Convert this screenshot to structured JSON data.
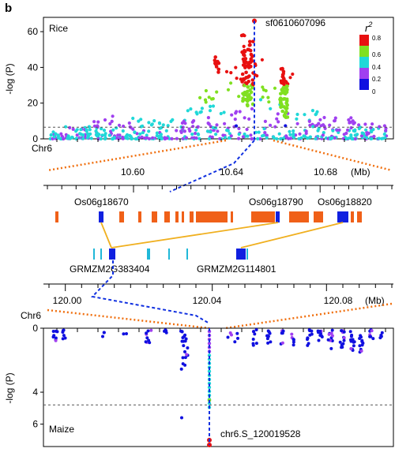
{
  "panel_label": "b",
  "colors": {
    "r2_bins": [
      "#1010e0",
      "#a040f0",
      "#20d8d8",
      "#80e020",
      "#e81010"
    ],
    "orange": "#f07010",
    "gene_rice": "#f06018",
    "gene_highlight": "#1020e0",
    "gene_maize": "#20b8d8",
    "link": "#f0b020",
    "threshold": "#555555",
    "lead_line": "#1030e0"
  },
  "legend": {
    "title": "r",
    "title_sup": "2",
    "labels": [
      "0.8",
      "0.6",
      "0.4",
      "0.2",
      "0"
    ]
  },
  "chart_data": [
    {
      "type": "scatter",
      "name": "rice-manhattan",
      "species_label": "Rice",
      "chrom_label": "Chr6",
      "ylabel": "-log (P)",
      "ylim": [
        0,
        68
      ],
      "yticks": [
        "0",
        "20",
        "40",
        "60"
      ],
      "threshold": 6.5,
      "lead_snp": {
        "label": "sf0610607096",
        "y": 66
      },
      "regions": [
        {
          "x0": 0.0,
          "x1": 0.04,
          "ymax": 4,
          "level": 1
        },
        {
          "x0": 0.04,
          "x1": 0.12,
          "ymax": 7,
          "level": 0
        },
        {
          "x0": 0.12,
          "x1": 0.24,
          "ymax": 13,
          "level": 1
        },
        {
          "x0": 0.24,
          "x1": 0.36,
          "ymax": 12,
          "level": 2
        },
        {
          "x0": 0.36,
          "x1": 0.44,
          "ymax": 18,
          "level": 2
        },
        {
          "x0": 0.44,
          "x1": 0.52,
          "ymax": 28,
          "level": 3
        },
        {
          "x0": 0.52,
          "x1": 0.57,
          "ymax": 40,
          "level": 3
        },
        {
          "x0": 0.57,
          "x1": 0.63,
          "ymax": 60,
          "level": 4
        },
        {
          "x0": 0.63,
          "x1": 0.67,
          "ymax": 30,
          "level": 3
        },
        {
          "x0": 0.67,
          "x1": 0.72,
          "ymax": 42,
          "level": 4
        },
        {
          "x0": 0.72,
          "x1": 0.8,
          "ymax": 18,
          "level": 2
        },
        {
          "x0": 0.8,
          "x1": 0.9,
          "ymax": 12,
          "level": 1
        },
        {
          "x0": 0.9,
          "x1": 1.0,
          "ymax": 9,
          "level": 1
        }
      ]
    },
    {
      "type": "gene-track",
      "name": "rice-genes",
      "axis_ticks": [
        "10.60",
        "10.64",
        "10.68"
      ],
      "axis_unit": "(Mb)",
      "highlighted_genes": [
        "Os06g18670",
        "Os06g18790",
        "Os06g18820"
      ]
    },
    {
      "type": "gene-track",
      "name": "maize-genes",
      "axis_ticks": [
        "120.00",
        "120.04",
        "120.08"
      ],
      "axis_unit": "(Mb)",
      "highlighted_genes": [
        "GRMZM2G383404",
        "GRMZM2G114801"
      ]
    },
    {
      "type": "scatter",
      "name": "maize-manhattan",
      "species_label": "Maize",
      "chrom_label": "Chr6",
      "ylabel": "-log (P)",
      "ylim": [
        0,
        7.4
      ],
      "yticks": [
        "0",
        "4",
        "6"
      ],
      "threshold": 4.8,
      "lead_snp": {
        "label": "chr6.S_120019528",
        "y": 7.3
      }
    }
  ]
}
